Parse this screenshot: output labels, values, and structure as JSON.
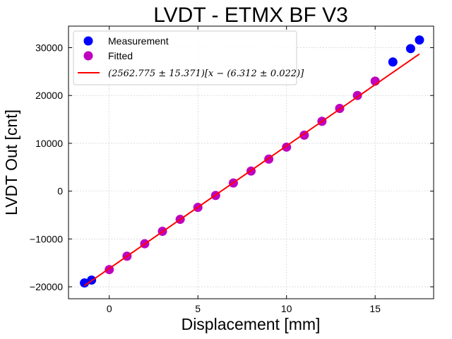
{
  "chart_data": {
    "type": "scatter",
    "title": "LVDT - ETMX BF V3",
    "xlabel": "Displacement [mm]",
    "ylabel": "LVDT Out [cnt]",
    "xlim": [
      -2.3,
      18.3
    ],
    "ylim": [
      -22500,
      34500
    ],
    "xticks": [
      0,
      5,
      10,
      15
    ],
    "yticks": [
      -20000,
      -10000,
      0,
      10000,
      20000,
      30000
    ],
    "xtick_labels": [
      "0",
      "5",
      "10",
      "15"
    ],
    "ytick_labels": [
      "−20000",
      "−10000",
      "0",
      "10000",
      "20000",
      "30000"
    ],
    "grid": true,
    "legend_position": "top-left",
    "series": [
      {
        "name": "Measurement",
        "kind": "points",
        "color": "#0000ff",
        "x": [
          -1.4,
          -1.0,
          16.0,
          17.0,
          17.5
        ],
        "y": [
          -19200,
          -18600,
          27000,
          29800,
          31600
        ]
      },
      {
        "name": "Fitted",
        "kind": "points",
        "color": "#bf00bf",
        "x": [
          0,
          1,
          2,
          3,
          4,
          5,
          6,
          7,
          8,
          9,
          10,
          11,
          12,
          13,
          14,
          15
        ],
        "y": [
          -16400,
          -13600,
          -11000,
          -8400,
          -5900,
          -3400,
          -900,
          1700,
          4200,
          6700,
          9200,
          11700,
          14600,
          17300,
          20000,
          23000
        ]
      },
      {
        "name": "$(2562.775 \\pm 15.371)[x - (6.312 \\pm 0.022)]$",
        "kind": "line",
        "color": "#ff0000",
        "x": [
          -1.4,
          17.5
        ],
        "y": [
          -19763,
          28673
        ]
      }
    ],
    "legend": [
      {
        "label": "Measurement",
        "color": "#0000ff",
        "marker": "circle"
      },
      {
        "label": "Fitted",
        "color": "#bf00bf",
        "marker": "circle"
      },
      {
        "label": "(2562.775 ± 15.371)[x − (6.312 ± 0.022)]",
        "color": "#ff0000",
        "marker": "line"
      }
    ]
  }
}
